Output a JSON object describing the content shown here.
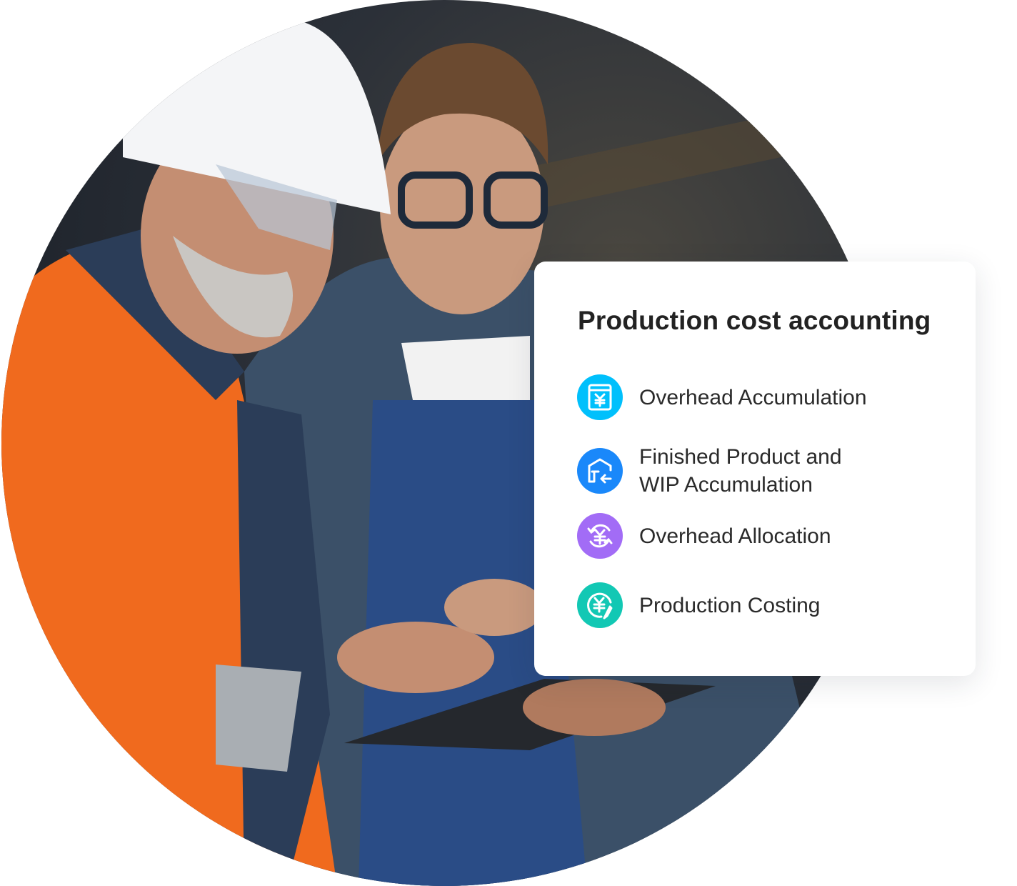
{
  "card": {
    "title": "Production cost accounting",
    "items": [
      {
        "label": "Overhead Accumulation",
        "icon": "ledger-yen-icon",
        "color": "#00c0fc"
      },
      {
        "label_line1": "Finished Product and",
        "label_line2": "WIP Accumulation",
        "icon": "warehouse-inbound-icon",
        "color": "#1a88fa"
      },
      {
        "label": "Overhead Allocation",
        "icon": "yen-cycle-icon",
        "color": "#a26cf6"
      },
      {
        "label": "Production Costing",
        "icon": "yen-edit-icon",
        "color": "#12c8b4"
      }
    ]
  }
}
